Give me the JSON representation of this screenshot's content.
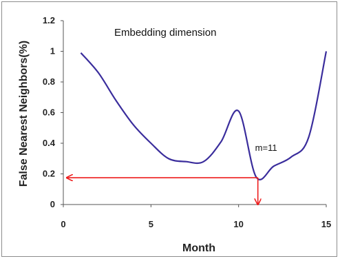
{
  "chart_data": {
    "type": "line",
    "title": "Embedding dimension",
    "xlabel": "Month",
    "ylabel": "False Nearest Neighbors(%)",
    "xlim": [
      0,
      15
    ],
    "ylim": [
      0,
      1.2
    ],
    "x_ticks": [
      "0",
      "5",
      "10",
      "15"
    ],
    "y_ticks": [
      "0",
      "0.2",
      "0.4",
      "0.6",
      "0.8",
      "1",
      "1.2"
    ],
    "grid": false,
    "series": [
      {
        "color": "#3a2d9c",
        "x": [
          1,
          2,
          3,
          4,
          5,
          6,
          7,
          8,
          9,
          10,
          11,
          12,
          13,
          14,
          15
        ],
        "y": [
          0.99,
          0.86,
          0.68,
          0.52,
          0.4,
          0.3,
          0.28,
          0.28,
          0.41,
          0.61,
          0.18,
          0.25,
          0.31,
          0.44,
          1.0
        ]
      }
    ],
    "annotations": [
      {
        "text": "m=11",
        "x": 11.1,
        "y": 0.175,
        "color": "#ee1c1c"
      }
    ]
  }
}
